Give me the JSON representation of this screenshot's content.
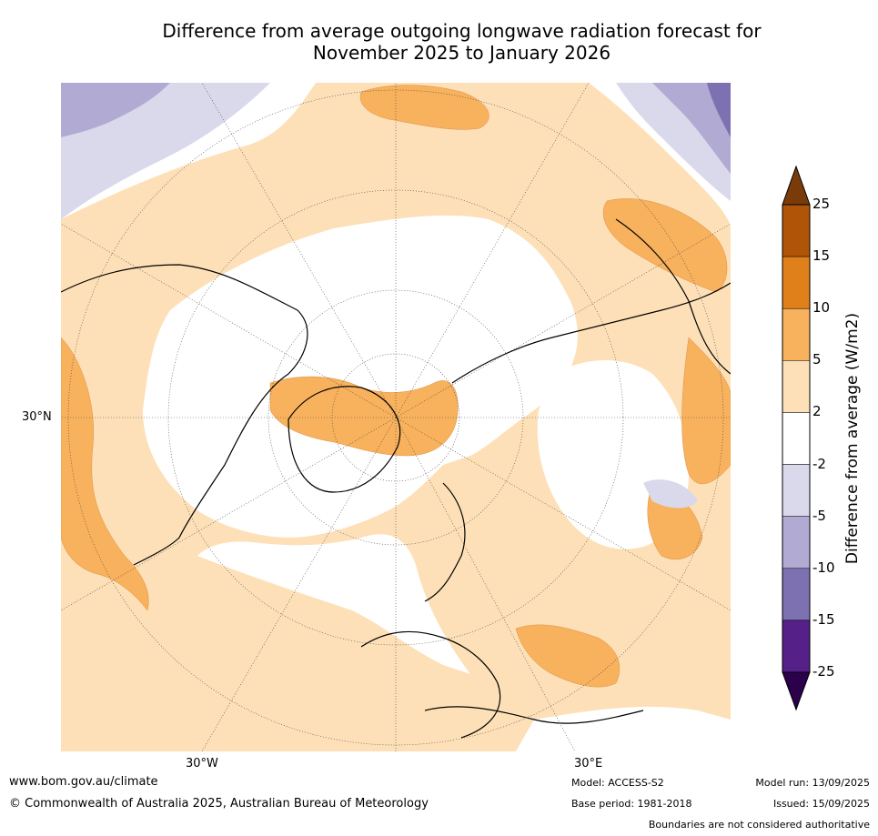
{
  "title_line1": "Difference from average outgoing longwave radiation forecast for",
  "title_line2": "November 2025 to January 2026",
  "map": {
    "projection": "north-polar-stereographic",
    "lat_label": "30°N",
    "lon_labels": {
      "west": "30°W",
      "east": "30°E"
    },
    "regions": [
      "pale-orange (2 to 5) widespread over Eurasia, Atlantic and western Pacific",
      "orange (5 to 10) over Greenland/Arctic, Europe-Black Sea, Central Asia, eastern Pacific off North America",
      "lilac (-2 to -10) over Pacific north-west corner and far north-east corner"
    ]
  },
  "colorbar": {
    "title": "Difference from average (W/m2)",
    "ticks": [
      "25",
      "15",
      "10",
      "5",
      "2",
      "-2",
      "-5",
      "-10",
      "-15",
      "-25"
    ],
    "colors": [
      "#7a3b0b",
      "#b05508",
      "#e0801a",
      "#f8b15c",
      "#fde0b7",
      "#ffffff",
      "#d9d9eb",
      "#b1aad3",
      "#7e71b2",
      "#552188",
      "#2d004b"
    ]
  },
  "footer": {
    "url": "www.bom.gov.au/climate",
    "copyright": "© Commonwealth of Australia 2025, Australian Bureau of Meteorology",
    "model": "Model: ACCESS-S2",
    "base_period": "Base period: 1981-2018",
    "model_run": "Model run: 13/09/2025",
    "issued": "Issued: 15/09/2025",
    "boundaries": "Boundaries are not considered authoritative"
  }
}
